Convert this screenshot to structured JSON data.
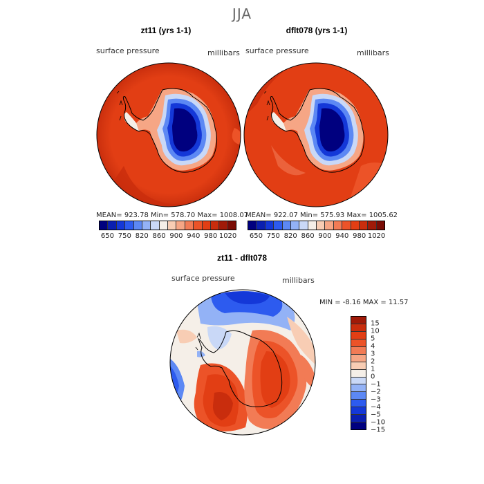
{
  "season": "JJA",
  "top_left": {
    "title": "zt11 (yrs 1-1)",
    "field": "surface pressure",
    "units": "millibars",
    "stats": {
      "mean": "923.78",
      "min": "578.70",
      "max": "1008.07"
    },
    "stats_text": "MEAN= 923.78   Min= 578.70   Max= 1008.07"
  },
  "top_right": {
    "title": "dflt078 (yrs 1-1)",
    "field": "surface pressure",
    "units": "millibars",
    "stats": {
      "mean": "922.07",
      "min": "575.93",
      "max": "1005.62"
    },
    "stats_text": "MEAN= 922.07   Min= 575.93   Max= 1005.62"
  },
  "colorbar_top": {
    "colors": [
      "#00007f",
      "#0a1fb0",
      "#1438d8",
      "#2d5bef",
      "#5c88f4",
      "#93b2f6",
      "#c9d8f7",
      "#f5efe8",
      "#f8cdb4",
      "#f6a685",
      "#f27b55",
      "#ec5328",
      "#e23e14",
      "#c92d0d",
      "#a01a08",
      "#7a0c05"
    ],
    "tick_labels": [
      "650",
      "750",
      "820",
      "860",
      "900",
      "940",
      "980",
      "1020"
    ]
  },
  "bottom": {
    "title": "zt11 - dflt078",
    "field": "surface pressure",
    "units": "millibars",
    "stats_text": "MIN =   -8.16  MAX =   11.57",
    "stats": {
      "min": "-8.16",
      "max": "11.57"
    }
  },
  "colorbar_diff": {
    "colors": [
      "#a01a08",
      "#c92d0d",
      "#e23e14",
      "#ec5328",
      "#f27b55",
      "#f6a685",
      "#f8cdb4",
      "#f5efe8",
      "#c9d8f7",
      "#93b2f6",
      "#5c88f4",
      "#2d5bef",
      "#1438d8",
      "#0a1fb0",
      "#00007f"
    ],
    "tick_labels": [
      "15",
      "10",
      "5",
      "4",
      "3",
      "2",
      "1",
      "0",
      "−1",
      "−2",
      "−3",
      "−4",
      "−5",
      "−10",
      "−15"
    ]
  }
}
